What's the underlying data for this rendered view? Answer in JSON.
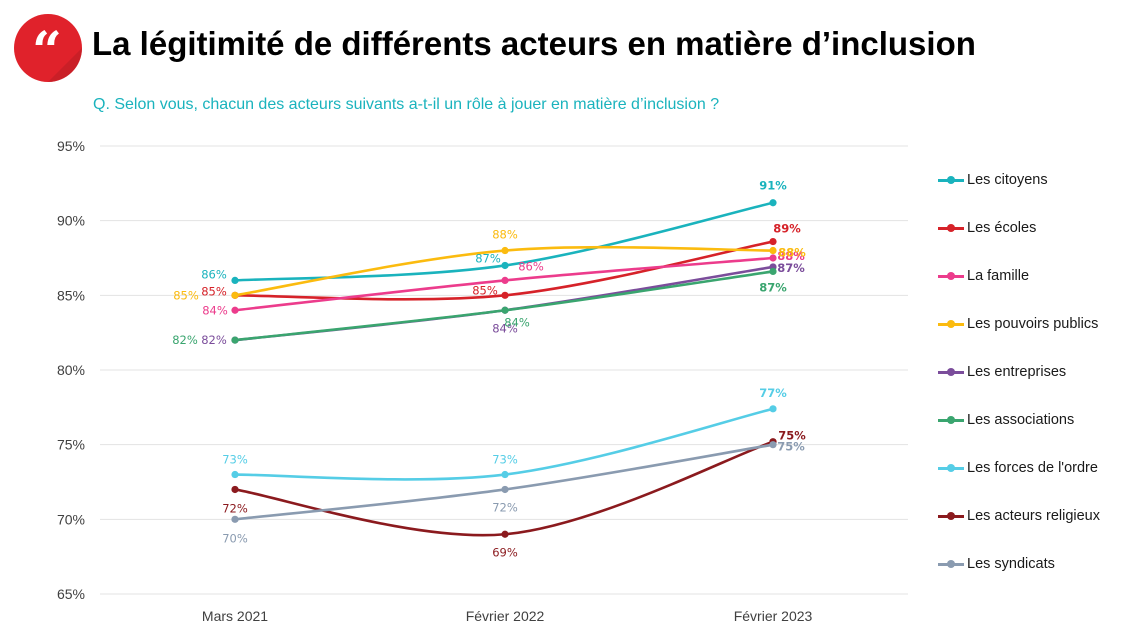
{
  "header": {
    "title": "La légitimité de différents acteurs en matière d’inclusion",
    "subtitle": "Q. Selon vous, chacun des acteurs suivants a-t-il un rôle à jouer en matière d’inclusion ?",
    "logo_icon": "quote-icon",
    "logo_color": "#e0222b"
  },
  "chart_data": {
    "type": "line",
    "title": "La légitimité de différents acteurs en matière d’inclusion",
    "subtitle": "Q. Selon vous, chacun des acteurs suivants a-t-il un rôle à jouer en matière d’inclusion ?",
    "categories": [
      "Mars 2021",
      "Février 2022",
      "Février 2023"
    ],
    "ylim": [
      65,
      95
    ],
    "yticks": [
      "65%",
      "70%",
      "75%",
      "80%",
      "85%",
      "90%",
      "95%"
    ],
    "grid": true,
    "legend_position": "right",
    "series": [
      {
        "name": "Les citoyens",
        "color": "#1ab3bd",
        "values": [
          86,
          87,
          91.2
        ],
        "labels": [
          "86%",
          "87%",
          "91%"
        ]
      },
      {
        "name": "Les écoles",
        "color": "#d62229",
        "values": [
          85,
          85,
          88.6
        ],
        "labels": [
          "85%",
          "85%",
          "89%"
        ]
      },
      {
        "name": "La famille",
        "color": "#ec3c8c",
        "values": [
          84,
          86,
          87.5
        ],
        "labels": [
          "84%",
          "86%",
          "88%"
        ]
      },
      {
        "name": "Les pouvoirs publics",
        "color": "#fbbb0f",
        "values": [
          85,
          88,
          88
        ],
        "labels": [
          "85%",
          "88%",
          "88%"
        ]
      },
      {
        "name": "Les entreprises",
        "color": "#7b4d9b",
        "values": [
          82,
          84,
          86.9
        ],
        "labels": [
          "82%",
          "84%",
          "87%"
        ]
      },
      {
        "name": "Les associations",
        "color": "#3aa56f",
        "values": [
          82,
          84,
          86.6
        ],
        "labels": [
          "82%",
          "84%",
          "87%"
        ]
      },
      {
        "name": "Les forces de l'ordre",
        "color": "#55cde6",
        "values": [
          73,
          73,
          77.4
        ],
        "labels": [
          "73%",
          "73%",
          "77%"
        ]
      },
      {
        "name": "Les acteurs religieux",
        "color": "#8b1a1e",
        "values": [
          72,
          69,
          75.2
        ],
        "labels": [
          "72%",
          "69%",
          "75%"
        ]
      },
      {
        "name": "Les syndicats",
        "color": "#8a9bb0",
        "values": [
          70,
          72,
          75
        ],
        "labels": [
          "70%",
          "72%",
          "75%"
        ]
      }
    ]
  }
}
